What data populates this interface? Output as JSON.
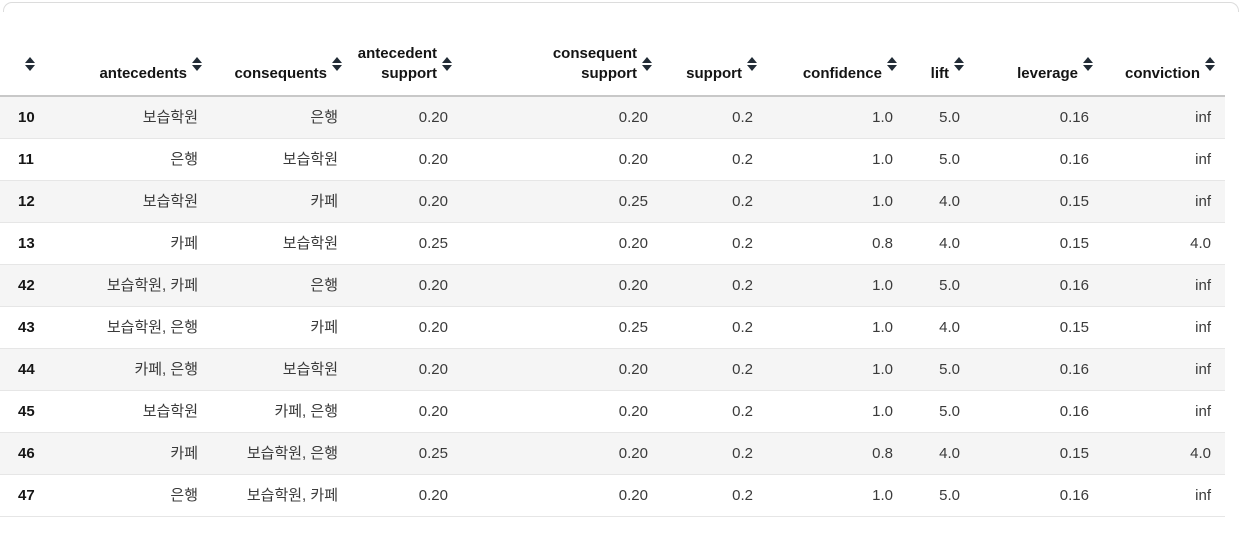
{
  "table": {
    "columns": [
      {
        "key": "index",
        "label": "",
        "sortable": true
      },
      {
        "key": "antecedents",
        "label": "antecedents",
        "sortable": true
      },
      {
        "key": "consequents",
        "label": "consequents",
        "sortable": true
      },
      {
        "key": "antecedent_support",
        "label": "antecedent\nsupport",
        "sortable": true
      },
      {
        "key": "consequent_support",
        "label": "consequent\nsupport",
        "sortable": true
      },
      {
        "key": "support",
        "label": "support",
        "sortable": true
      },
      {
        "key": "confidence",
        "label": "confidence",
        "sortable": true
      },
      {
        "key": "lift",
        "label": "lift",
        "sortable": true
      },
      {
        "key": "leverage",
        "label": "leverage",
        "sortable": true
      },
      {
        "key": "conviction",
        "label": "conviction",
        "sortable": true
      }
    ],
    "rows": [
      {
        "index": "10",
        "antecedents": "보습학원",
        "consequents": "은행",
        "antecedent_support": "0.20",
        "consequent_support": "0.20",
        "support": "0.2",
        "confidence": "1.0",
        "lift": "5.0",
        "leverage": "0.16",
        "conviction": "inf"
      },
      {
        "index": "11",
        "antecedents": "은행",
        "consequents": "보습학원",
        "antecedent_support": "0.20",
        "consequent_support": "0.20",
        "support": "0.2",
        "confidence": "1.0",
        "lift": "5.0",
        "leverage": "0.16",
        "conviction": "inf"
      },
      {
        "index": "12",
        "antecedents": "보습학원",
        "consequents": "카페",
        "antecedent_support": "0.20",
        "consequent_support": "0.25",
        "support": "0.2",
        "confidence": "1.0",
        "lift": "4.0",
        "leverage": "0.15",
        "conviction": "inf"
      },
      {
        "index": "13",
        "antecedents": "카페",
        "consequents": "보습학원",
        "antecedent_support": "0.25",
        "consequent_support": "0.20",
        "support": "0.2",
        "confidence": "0.8",
        "lift": "4.0",
        "leverage": "0.15",
        "conviction": "4.0"
      },
      {
        "index": "42",
        "antecedents": "보습학원, 카페",
        "consequents": "은행",
        "antecedent_support": "0.20",
        "consequent_support": "0.20",
        "support": "0.2",
        "confidence": "1.0",
        "lift": "5.0",
        "leverage": "0.16",
        "conviction": "inf"
      },
      {
        "index": "43",
        "antecedents": "보습학원, 은행",
        "consequents": "카페",
        "antecedent_support": "0.20",
        "consequent_support": "0.25",
        "support": "0.2",
        "confidence": "1.0",
        "lift": "4.0",
        "leverage": "0.15",
        "conviction": "inf"
      },
      {
        "index": "44",
        "antecedents": "카페, 은행",
        "consequents": "보습학원",
        "antecedent_support": "0.20",
        "consequent_support": "0.20",
        "support": "0.2",
        "confidence": "1.0",
        "lift": "5.0",
        "leverage": "0.16",
        "conviction": "inf"
      },
      {
        "index": "45",
        "antecedents": "보습학원",
        "consequents": "카페, 은행",
        "antecedent_support": "0.20",
        "consequent_support": "0.20",
        "support": "0.2",
        "confidence": "1.0",
        "lift": "5.0",
        "leverage": "0.16",
        "conviction": "inf"
      },
      {
        "index": "46",
        "antecedents": "카페",
        "consequents": "보습학원, 은행",
        "antecedent_support": "0.25",
        "consequent_support": "0.20",
        "support": "0.2",
        "confidence": "0.8",
        "lift": "4.0",
        "leverage": "0.15",
        "conviction": "4.0"
      },
      {
        "index": "47",
        "antecedents": "은행",
        "consequents": "보습학원, 카페",
        "antecedent_support": "0.20",
        "consequent_support": "0.20",
        "support": "0.2",
        "confidence": "1.0",
        "lift": "5.0",
        "leverage": "0.16",
        "conviction": "inf"
      }
    ]
  },
  "icons": {
    "sort": "sort-icon"
  },
  "colors": {
    "stripe": "#f5f5f5",
    "row_divider": "#e6e6e6",
    "header_border": "#c8c8c8",
    "panel_edge": "#dcdcdc",
    "sort_icon": "#222c36",
    "text": "#3a3a3a",
    "header_text": "#141414"
  }
}
